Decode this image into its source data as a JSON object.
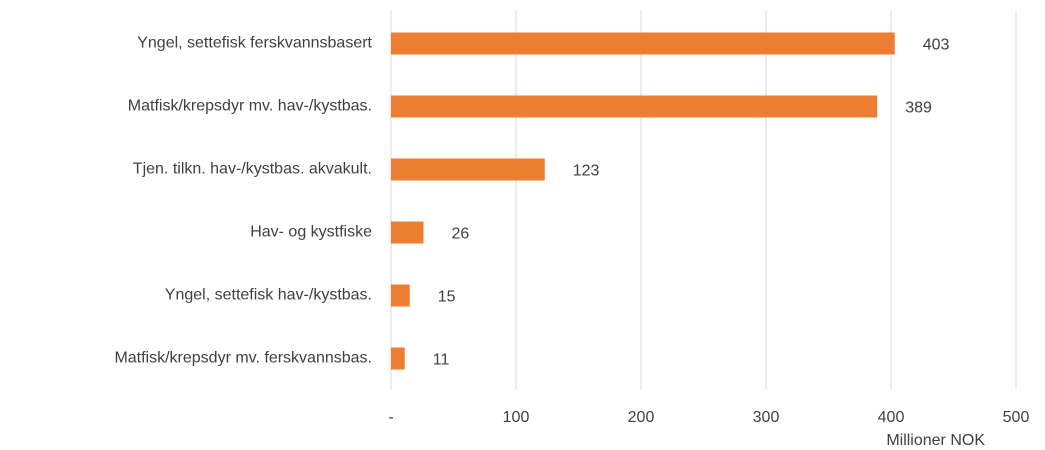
{
  "chart_data": {
    "type": "barh",
    "categories": [
      "Yngel, settefisk ferskvannsbasert",
      "Matfisk/krepsdyr mv. hav-/kystbas.",
      "Tjen. tilkn. hav-/kystbas. akvakult.",
      "Hav- og kystfiske",
      "Yngel, settefisk hav-/kystbas.",
      "Matfisk/krepsdyr mv. ferskvannsbas."
    ],
    "values": [
      403,
      389,
      123,
      26,
      15,
      11
    ],
    "color": "#ed7d31",
    "xlabel": "Millioner NOK",
    "xlim": [
      0,
      500
    ],
    "xticks": [
      {
        "value": 0,
        "label": "-"
      },
      100,
      200,
      300,
      400,
      500
    ],
    "grid": true
  }
}
